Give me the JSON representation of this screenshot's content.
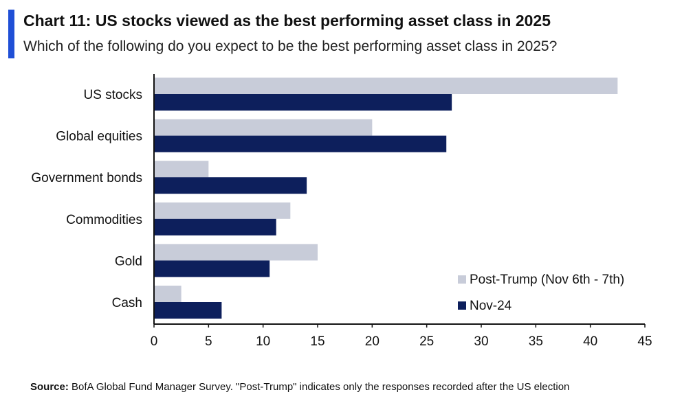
{
  "header": {
    "title": "Chart 11: US stocks viewed as the best performing asset class in 2025",
    "subtitle": "Which of the following do you expect to be the best performing asset class in 2025?"
  },
  "footer": {
    "source_label": "Source:",
    "source_text": " BofA Global Fund Manager Survey. \"Post-Trump\" indicates only the responses recorded after the US election"
  },
  "colors": {
    "accent": "#1f4fd6",
    "post_trump": "#c8ccd9",
    "nov24": "#0d1f5c",
    "axis": "#111111"
  },
  "chart_data": {
    "type": "bar",
    "orientation": "horizontal",
    "title": "Chart 11: US stocks viewed as the best performing asset class in 2025",
    "subtitle": "Which of the following do you expect to be the best performing asset class in 2025?",
    "categories": [
      "US stocks",
      "Global equities",
      "Government bonds",
      "Commodities",
      "Gold",
      "Cash"
    ],
    "series": [
      {
        "name": "Post-Trump (Nov 6th - 7th)",
        "values": [
          42.5,
          20.0,
          5.0,
          12.5,
          15.0,
          2.5
        ]
      },
      {
        "name": "Nov-24",
        "values": [
          27.3,
          26.8,
          14.0,
          11.2,
          10.6,
          6.2
        ]
      }
    ],
    "xlim": [
      0,
      45
    ],
    "xticks": [
      0,
      5,
      10,
      15,
      20,
      25,
      30,
      35,
      40,
      45
    ],
    "xlabel": "",
    "ylabel": "",
    "grid": false,
    "legend_position": "bottom-right"
  }
}
